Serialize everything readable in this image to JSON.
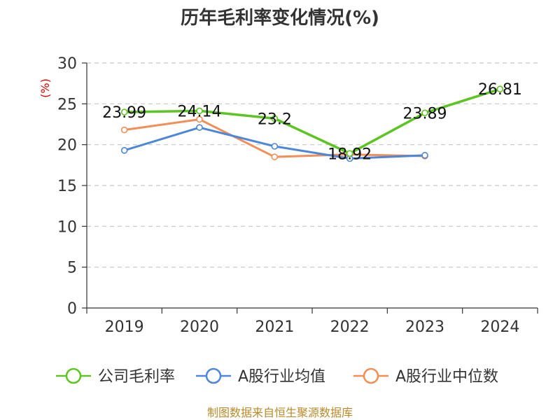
{
  "page": {
    "title": "历年毛利率变化情况(%)",
    "footer": "制图数据来自恒生聚源数据库"
  },
  "chart_data": {
    "type": "line",
    "title": "历年毛利率变化情况(%)",
    "ylabel": "(%)",
    "categories": [
      "2019",
      "2020",
      "2021",
      "2022",
      "2023",
      "2024"
    ],
    "ylim": [
      0,
      30
    ],
    "yticks": [
      0,
      5,
      10,
      15,
      20,
      25,
      30
    ],
    "grid": "horizontal-dashed",
    "legend_position": "bottom",
    "series": [
      {
        "name": "公司毛利率",
        "color": "#5cc522",
        "values": [
          23.99,
          24.14,
          23.2,
          18.92,
          23.89,
          26.81
        ],
        "labels": [
          "23.99",
          "24.14",
          "23.2",
          "18.92",
          "23.89",
          "26.81"
        ]
      },
      {
        "name": "A股行业均值",
        "color": "#4d87d9",
        "values": [
          19.3,
          22.1,
          19.8,
          18.3,
          18.7,
          null
        ]
      },
      {
        "name": "A股行业中位数",
        "color": "#f28e56",
        "values": [
          21.8,
          23.1,
          18.5,
          18.8,
          18.6,
          null
        ]
      }
    ]
  }
}
